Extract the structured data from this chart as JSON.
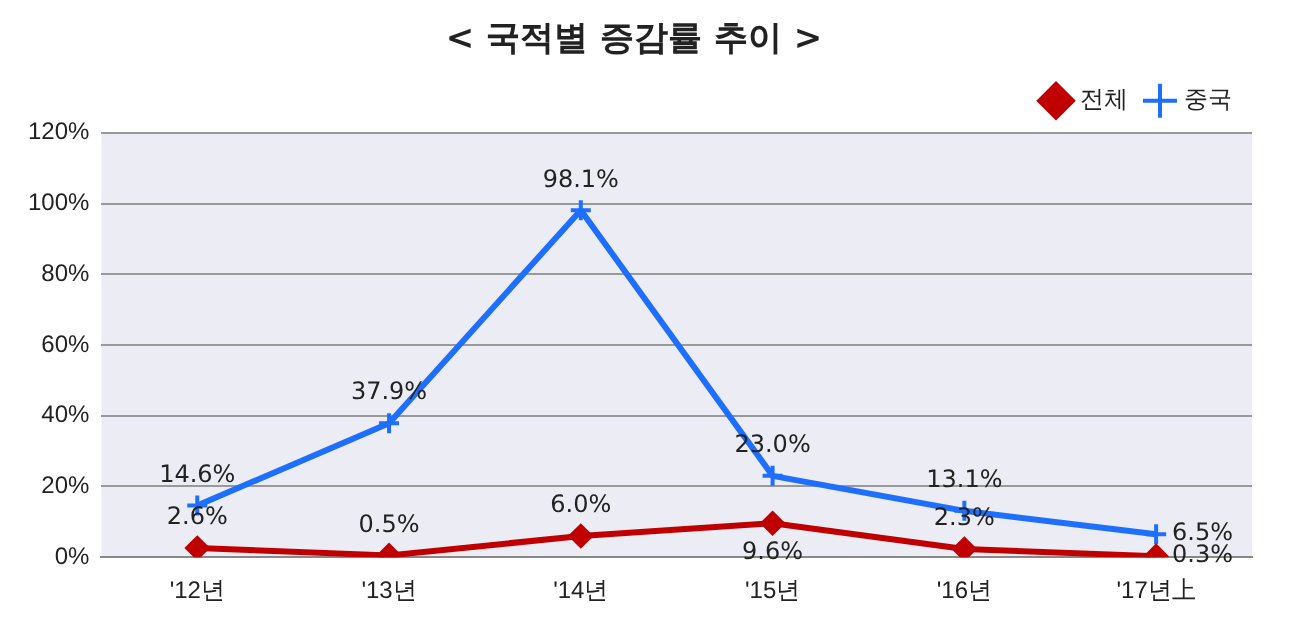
{
  "chart_data": {
    "type": "line",
    "title": "< 국적별 증감률 추이 >",
    "categories": [
      "'12년",
      "'13년",
      "'14년",
      "'15년",
      "'16년",
      "'17년上"
    ],
    "series": [
      {
        "name": "전체",
        "color": "#c00000",
        "marker": "diamond",
        "values": [
          2.6,
          0.5,
          6.0,
          9.6,
          2.3,
          0.3
        ],
        "value_labels": [
          "2.6%",
          "0.5%",
          "6.0%",
          "9.6%",
          "2.3%",
          "0.3%"
        ]
      },
      {
        "name": "중국",
        "color": "#1f6fff",
        "marker": "cross",
        "values": [
          14.6,
          37.9,
          98.1,
          23.0,
          13.1,
          6.5
        ],
        "value_labels": [
          "14.6%",
          "37.9%",
          "98.1%",
          "23.0%",
          "13.1%",
          "6.5%"
        ]
      }
    ],
    "ylim": [
      0,
      120
    ],
    "yticks": [
      {
        "value": 0,
        "label": "0%"
      },
      {
        "value": 20,
        "label": "20%"
      },
      {
        "value": 40,
        "label": "40%"
      },
      {
        "value": 60,
        "label": "60%"
      },
      {
        "value": 80,
        "label": "80%"
      },
      {
        "value": 100,
        "label": "100%"
      },
      {
        "value": 120,
        "label": "120%"
      }
    ],
    "grid": "y",
    "legend": "top right"
  }
}
